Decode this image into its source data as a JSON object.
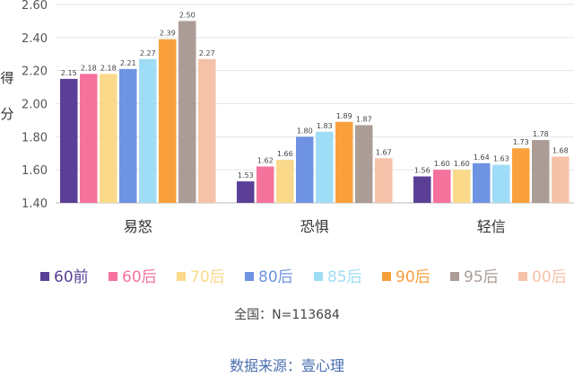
{
  "chart_data": {
    "type": "bar",
    "ylabel": "得分",
    "ylim": [
      1.4,
      2.6
    ],
    "yticks": [
      "1.40",
      "1.60",
      "1.80",
      "2.00",
      "2.20",
      "2.40",
      "2.60"
    ],
    "categories": [
      "易怒",
      "恐惧",
      "轻信"
    ],
    "series": [
      {
        "name": "60前",
        "color": "#5b3f96",
        "values": [
          2.15,
          1.53,
          1.56
        ],
        "labels": [
          "2.15",
          "1.53",
          "1.56"
        ]
      },
      {
        "name": "60后",
        "color": "#f5729c",
        "values": [
          2.18,
          1.62,
          1.6
        ],
        "labels": [
          "2.18",
          "1.62",
          "1.60"
        ]
      },
      {
        "name": "70后",
        "color": "#fad98a",
        "values": [
          2.18,
          1.66,
          1.6
        ],
        "labels": [
          "2.18",
          "1.66",
          "1.60"
        ]
      },
      {
        "name": "80后",
        "color": "#6f93e3",
        "values": [
          2.21,
          1.8,
          1.64
        ],
        "labels": [
          "2.21",
          "1.80",
          "1.64"
        ]
      },
      {
        "name": "85后",
        "color": "#9fdcf5",
        "values": [
          2.27,
          1.83,
          1.63
        ],
        "labels": [
          "2.27",
          "1.83",
          "1.63"
        ]
      },
      {
        "name": "90后",
        "color": "#f9a03c",
        "values": [
          2.39,
          1.89,
          1.73
        ],
        "labels": [
          "2.39",
          "1.89",
          "1.73"
        ]
      },
      {
        "name": "95后",
        "color": "#ab9d96",
        "values": [
          2.5,
          1.87,
          1.78
        ],
        "labels": [
          "2.50",
          "1.87",
          "1.78"
        ]
      },
      {
        "name": "00后",
        "color": "#f6c1a9",
        "values": [
          2.27,
          1.67,
          1.68
        ],
        "labels": [
          "2.27",
          "1.67",
          "1.68"
        ]
      }
    ],
    "legend_position": "bottom",
    "grid": true
  },
  "note": "全国：N=113684",
  "source": "数据来源：壹心理"
}
